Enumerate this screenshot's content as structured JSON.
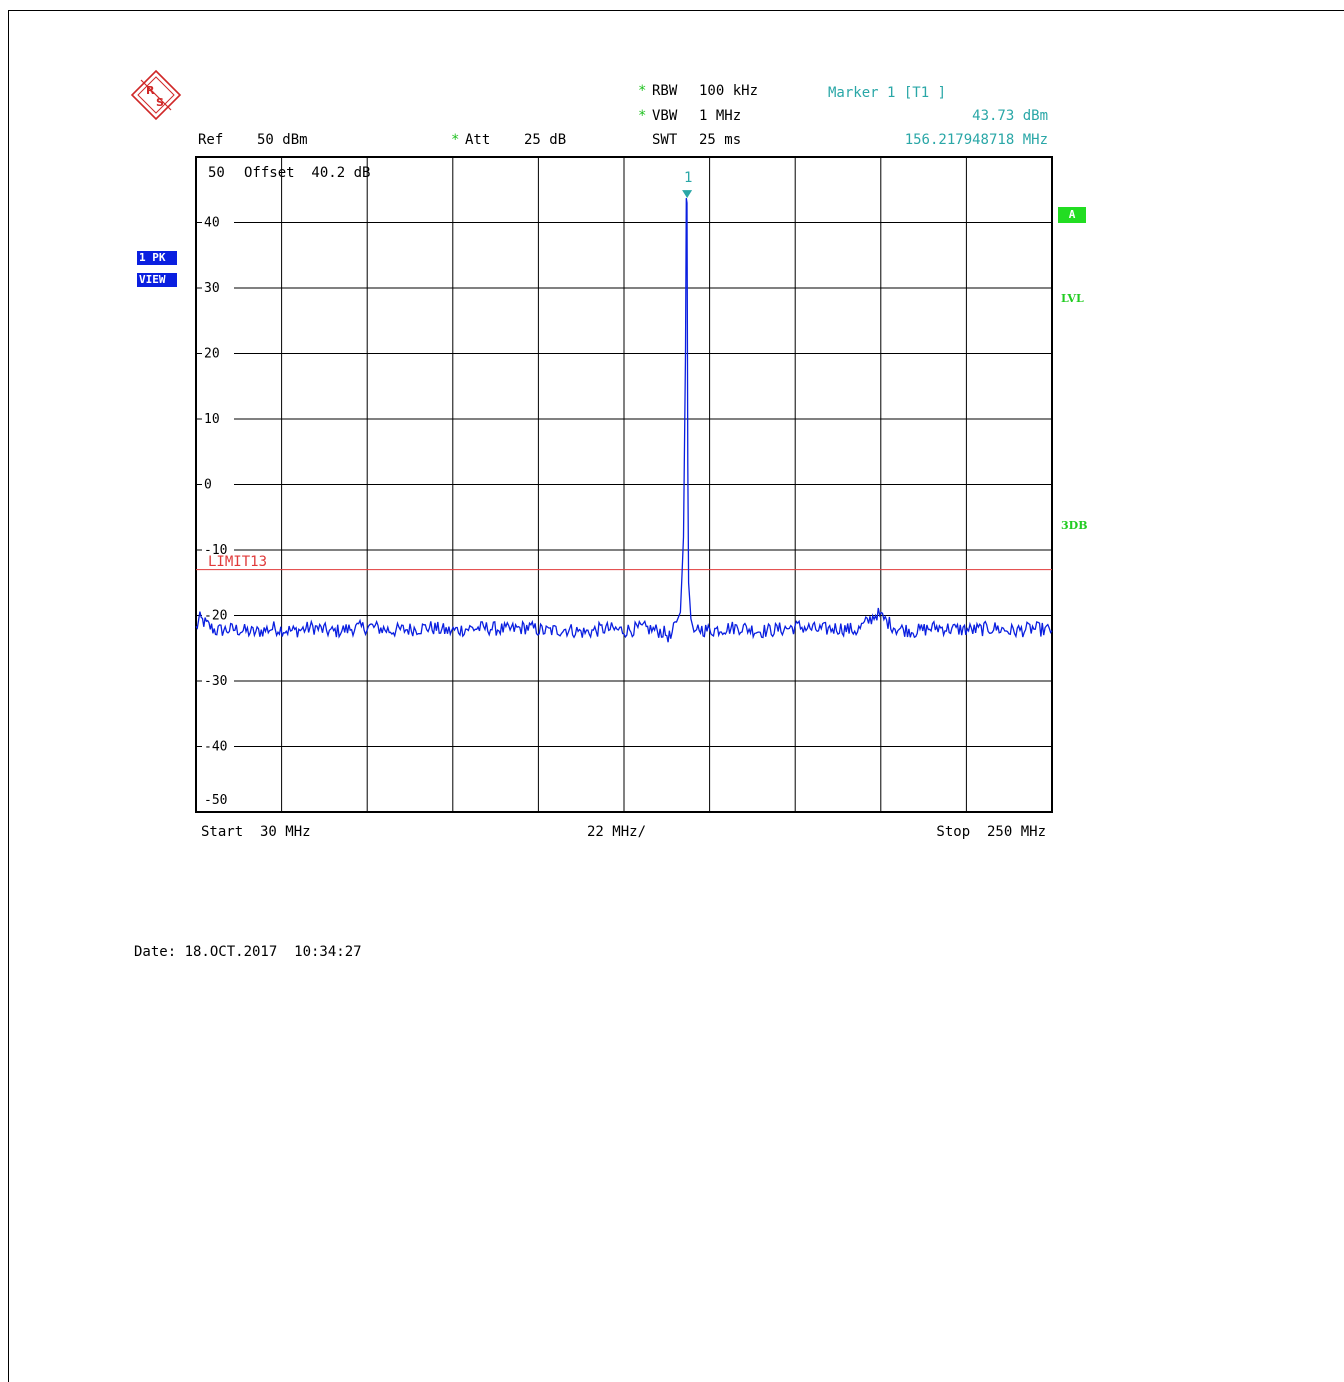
{
  "header": {
    "rbw_label": "RBW",
    "rbw_value": "100 kHz",
    "vbw_label": "VBW",
    "vbw_value": "1 MHz",
    "swt_label": "SWT",
    "swt_value": "25 ms",
    "ref_label": "Ref",
    "ref_value": "50 dBm",
    "att_label": "Att",
    "att_value": "25 dB",
    "star": "*",
    "marker_title": "Marker 1 [T1 ]",
    "marker_level": "43.73 dBm",
    "marker_freq": "156.217948718 MHz"
  },
  "left_badges": {
    "trace_mode": "1 PK",
    "view": "VIEW"
  },
  "right_indicators": {
    "a": "A",
    "lvl": "LVL",
    "db3": "3DB"
  },
  "footer": {
    "start": "Start  30 MHz",
    "span_per_div": "22 MHz/",
    "stop": "Stop  250 MHz",
    "date": "Date: 18.OCT.2017  10:34:27"
  },
  "colors": {
    "trace": "#0a1fe0",
    "limit": "#e03a3a",
    "marker": "#2aa7a7",
    "indicator": "#22dd22",
    "grid": "#000000"
  },
  "chart_data": {
    "type": "line",
    "title": "",
    "offset_label": "Offset  40.2 dB",
    "top_label": "50",
    "xlabel": "",
    "ylabel": "",
    "x_unit": "MHz",
    "y_unit": "dBm",
    "xlim": [
      30,
      250
    ],
    "ylim": [
      -50,
      50
    ],
    "y_ticks": [
      40,
      30,
      20,
      10,
      0,
      -10,
      -20,
      -30,
      -40,
      -50
    ],
    "x_divisions": 10,
    "y_divisions": 10,
    "grid": true,
    "limit_line": {
      "name": "LIMIT13",
      "value": -13
    },
    "marker": {
      "label": "1",
      "x": 156.217948718,
      "y": 43.73
    },
    "series": [
      {
        "x": [
          30,
          31,
          33,
          35,
          40,
          45,
          50,
          55,
          60,
          65,
          70,
          75,
          80,
          85,
          90,
          95,
          100,
          105,
          110,
          115,
          120,
          125,
          130,
          135,
          140,
          145,
          150,
          152,
          153.5,
          154.5,
          155.3,
          155.8,
          156.0,
          156.2,
          156.4,
          156.6,
          157.2,
          158,
          159,
          162,
          165,
          170,
          175,
          180,
          185,
          190,
          195,
          200,
          205,
          210,
          215,
          220,
          225,
          230,
          235,
          240,
          245,
          250
        ],
        "values": [
          -22,
          -20.5,
          -21.5,
          -22.3,
          -22.1,
          -22.6,
          -21.9,
          -22.4,
          -21.8,
          -22.5,
          -22.0,
          -21.7,
          -22.3,
          -22.1,
          -21.8,
          -22.4,
          -22.0,
          -21.9,
          -22.2,
          -21.8,
          -22.4,
          -22.1,
          -22.6,
          -22.0,
          -22.3,
          -21.9,
          -22.5,
          -23.4,
          -21.0,
          -19.5,
          -8.0,
          20.0,
          43.73,
          43.0,
          3.0,
          -15.0,
          -20.5,
          -22.5,
          -22.0,
          -22.3,
          -22.0,
          -21.8,
          -22.4,
          -22.1,
          -21.7,
          -22.2,
          -21.9,
          -22.3,
          -19.7,
          -22.0,
          -22.4,
          -21.8,
          -22.1,
          -22.2,
          -21.9,
          -22.4,
          -22.0,
          -22.3
        ]
      }
    ]
  }
}
